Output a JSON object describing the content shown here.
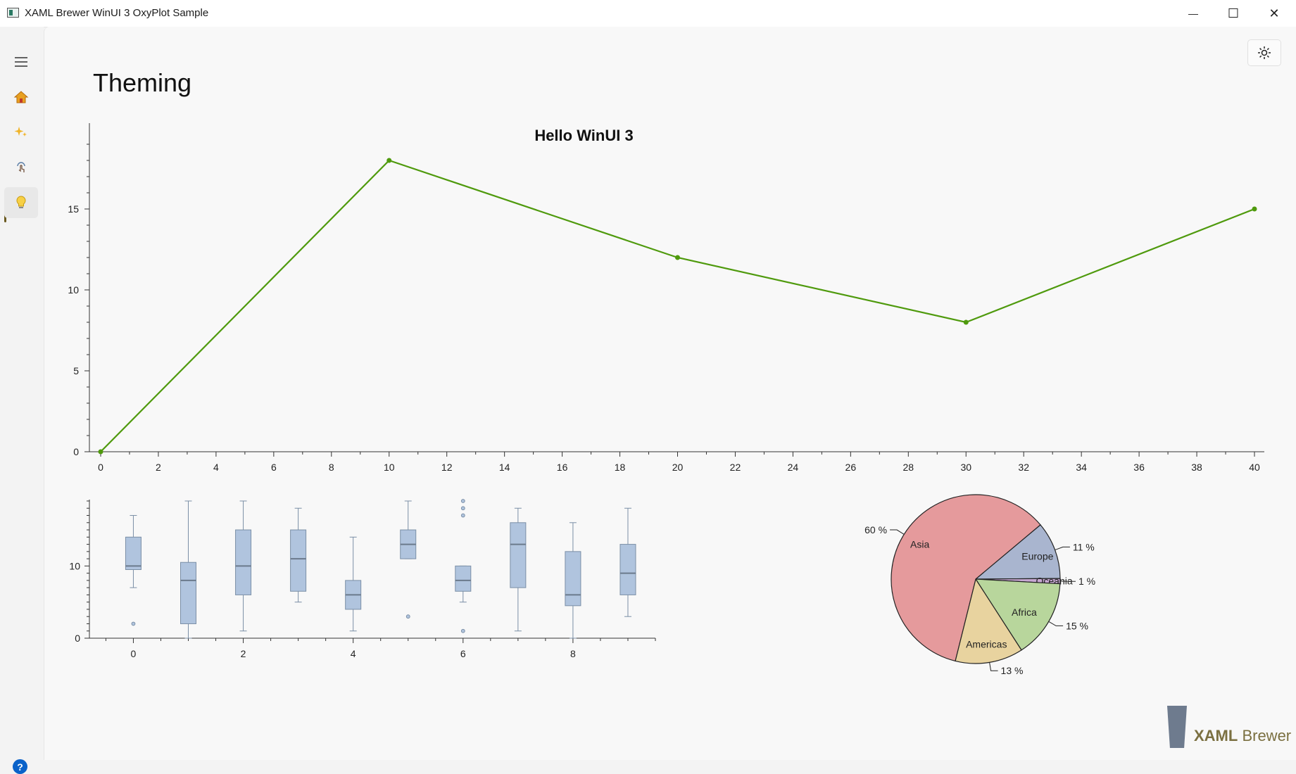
{
  "window": {
    "title": "XAML Brewer WinUI 3 OxyPlot Sample",
    "minimize_glyph": "—",
    "maximize_glyph": "☐",
    "close_glyph": "✕"
  },
  "nav": {
    "items": [
      {
        "name": "menu",
        "icon": "hamburger-icon"
      },
      {
        "name": "home",
        "icon": "home-icon"
      },
      {
        "name": "sparkle",
        "icon": "sparkle-icon"
      },
      {
        "name": "touch",
        "icon": "touch-icon"
      },
      {
        "name": "theming",
        "icon": "lightbulb-icon",
        "selected": true
      }
    ],
    "help_glyph": "?"
  },
  "page": {
    "title": "Theming",
    "theme_toggle_icon": "sun-icon"
  },
  "brand": {
    "name_bold": "XAML",
    "name_light": " Brewer"
  },
  "colors": {
    "line": "#4f9a0d",
    "box_fill": "#b0c4de",
    "box_stroke": "#7b8fa6",
    "asia": "#e59a9c",
    "europe": "#a9b5cf",
    "oceania": "#c7a8d2",
    "africa": "#b8d69c",
    "americas": "#e8d39f"
  },
  "chart_data": [
    {
      "type": "line",
      "title": "Hello WinUI 3",
      "x": [
        0,
        10,
        20,
        30,
        40
      ],
      "series": [
        {
          "values": [
            0,
            18,
            12,
            8,
            15
          ]
        }
      ],
      "xlim": [
        0,
        40
      ],
      "ylim": [
        0,
        18
      ],
      "xticks": [
        "0",
        "2",
        "4",
        "6",
        "8",
        "10",
        "12",
        "14",
        "16",
        "18",
        "20",
        "22",
        "24",
        "26",
        "28",
        "30",
        "32",
        "34",
        "36",
        "38",
        "40"
      ],
      "yticks": [
        "0",
        "5",
        "10",
        "15"
      ]
    },
    {
      "type": "box",
      "xticks": [
        "0",
        "2",
        "4",
        "6",
        "8"
      ],
      "yticks": [
        "0",
        "10"
      ],
      "xlim": [
        -0.8,
        9.5
      ],
      "ylim": [
        0,
        19
      ],
      "boxes": [
        {
          "x": 0,
          "min": 7,
          "q1": 9.5,
          "median": 10,
          "q3": 14,
          "max": 17,
          "outliers": [
            2
          ]
        },
        {
          "x": 1,
          "min": 0,
          "q1": 2,
          "median": 8,
          "q3": 10.5,
          "max": 19,
          "outliers": []
        },
        {
          "x": 2,
          "min": 1,
          "q1": 6,
          "median": 10,
          "q3": 15,
          "max": 19,
          "outliers": []
        },
        {
          "x": 3,
          "min": 5,
          "q1": 6.5,
          "median": 11,
          "q3": 15,
          "max": 18,
          "outliers": []
        },
        {
          "x": 4,
          "min": 1,
          "q1": 4,
          "median": 6,
          "q3": 8,
          "max": 14,
          "outliers": []
        },
        {
          "x": 5,
          "min": 11,
          "q1": 11,
          "median": 13,
          "q3": 15,
          "max": 19,
          "outliers": [
            3
          ]
        },
        {
          "x": 6,
          "min": 5,
          "q1": 6.5,
          "median": 8,
          "q3": 10,
          "max": 10,
          "outliers": [
            1,
            17,
            18,
            19
          ]
        },
        {
          "x": 7,
          "min": 1,
          "q1": 7,
          "median": 13,
          "q3": 16,
          "max": 18,
          "outliers": []
        },
        {
          "x": 8,
          "min": 0,
          "q1": 4.5,
          "median": 6,
          "q3": 12,
          "max": 16,
          "outliers": []
        },
        {
          "x": 9,
          "min": 3,
          "q1": 6,
          "median": 9,
          "q3": 13,
          "max": 18,
          "outliers": []
        }
      ]
    },
    {
      "type": "pie",
      "slices": [
        {
          "label": "Europe",
          "value": 11,
          "pct": "11 %"
        },
        {
          "label": "Oceania",
          "value": 1,
          "pct": "1 %"
        },
        {
          "label": "Africa",
          "value": 15,
          "pct": "15 %"
        },
        {
          "label": "Americas",
          "value": 13,
          "pct": "13 %"
        },
        {
          "label": "Asia",
          "value": 60,
          "pct": "60 %"
        }
      ]
    }
  ]
}
